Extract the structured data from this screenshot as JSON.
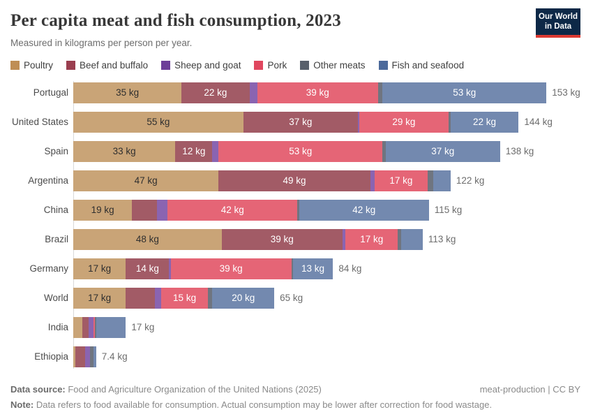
{
  "header": {
    "title": "Per capita meat and fish consumption, 2023",
    "subtitle": "Measured in kilograms per person per year.",
    "logo_line1": "Our World",
    "logo_line2": "in Data",
    "logo_bg_color": "#0d2847",
    "logo_accent_color": "#dc3a32"
  },
  "legend": [
    {
      "label": "Poultry",
      "swatch_color": "#bf8e55",
      "bar_color": "#c9a477",
      "text_color": "#2f2f2f"
    },
    {
      "label": "Beef and buffalo",
      "swatch_color": "#9a3e4f",
      "bar_color": "#a25b66",
      "text_color": "#ffffff"
    },
    {
      "label": "Sheep and goat",
      "swatch_color": "#6d3e98",
      "bar_color": "#8a64b1",
      "text_color": "#ffffff"
    },
    {
      "label": "Pork",
      "swatch_color": "#e0475f",
      "bar_color": "#e56576",
      "text_color": "#ffffff"
    },
    {
      "label": "Other meats",
      "swatch_color": "#58606b",
      "bar_color": "#6f7580",
      "text_color": "#ffffff"
    },
    {
      "label": "Fish and seafood",
      "swatch_color": "#4c6a9b",
      "bar_color": "#7389af",
      "text_color": "#ffffff"
    }
  ],
  "chart_data": {
    "type": "bar",
    "orientation": "horizontal",
    "stacked": true,
    "unit": "kg",
    "xmax": 164,
    "grid": false,
    "categories": [
      "Poultry",
      "Beef and buffalo",
      "Sheep and goat",
      "Pork",
      "Other meats",
      "Fish and seafood"
    ],
    "rows": [
      {
        "country": "Portugal",
        "total": 153,
        "total_label": "153 kg",
        "values": [
          35,
          22,
          2.5,
          39,
          1.5,
          53
        ],
        "labels": [
          "35 kg",
          "22 kg",
          null,
          "39 kg",
          null,
          "53 kg"
        ]
      },
      {
        "country": "United States",
        "total": 144,
        "total_label": "144 kg",
        "values": [
          55,
          37,
          0.4,
          29,
          0.6,
          22
        ],
        "labels": [
          "55 kg",
          "37 kg",
          null,
          "29 kg",
          null,
          "22 kg"
        ]
      },
      {
        "country": "Spain",
        "total": 138,
        "total_label": "138 kg",
        "values": [
          33,
          12,
          2,
          53,
          1,
          37
        ],
        "labels": [
          "33 kg",
          "12 kg",
          null,
          "53 kg",
          null,
          "37 kg"
        ]
      },
      {
        "country": "Argentina",
        "total": 122,
        "total_label": "122 kg",
        "values": [
          47,
          49,
          1.5,
          17,
          2,
          5.5
        ],
        "labels": [
          "47 kg",
          "49 kg",
          null,
          "17 kg",
          null,
          null
        ]
      },
      {
        "country": "China",
        "total": 115,
        "total_label": "115 kg",
        "values": [
          19,
          8,
          3.5,
          42,
          0.5,
          42
        ],
        "labels": [
          "19 kg",
          null,
          null,
          "42 kg",
          null,
          "42 kg"
        ]
      },
      {
        "country": "Brazil",
        "total": 113,
        "total_label": "113 kg",
        "values": [
          48,
          39,
          1,
          17,
          1,
          7
        ],
        "labels": [
          "48 kg",
          "39 kg",
          null,
          "17 kg",
          null,
          null
        ]
      },
      {
        "country": "Germany",
        "total": 84,
        "total_label": "84 kg",
        "values": [
          17,
          14,
          0.5,
          39,
          0.5,
          13
        ],
        "labels": [
          "17 kg",
          "14 kg",
          null,
          "39 kg",
          null,
          "13 kg"
        ]
      },
      {
        "country": "World",
        "total": 65,
        "total_label": "65 kg",
        "values": [
          17,
          9.5,
          2,
          15,
          1.5,
          20
        ],
        "labels": [
          "17 kg",
          null,
          null,
          "15 kg",
          null,
          "20 kg"
        ]
      },
      {
        "country": "India",
        "total": 17,
        "total_label": "17 kg",
        "values": [
          3,
          2,
          1.5,
          0.5,
          0.5,
          9.5
        ],
        "labels": [
          null,
          null,
          null,
          null,
          null,
          null
        ]
      },
      {
        "country": "Ethiopia",
        "total": 7.4,
        "total_label": "7.4 kg",
        "values": [
          0.6,
          3.2,
          1.6,
          0.1,
          1.0,
          0.9
        ],
        "labels": [
          null,
          null,
          null,
          null,
          null,
          null
        ]
      }
    ]
  },
  "footer": {
    "data_source_label": "Data source:",
    "data_source_text": " Food and Agriculture Organization of the United Nations (2025)",
    "attribution": "meat-production | CC BY",
    "note_label": "Note:",
    "note_text": " Data refers to food available for consumption. Actual consumption may be lower after correction for food wastage."
  }
}
